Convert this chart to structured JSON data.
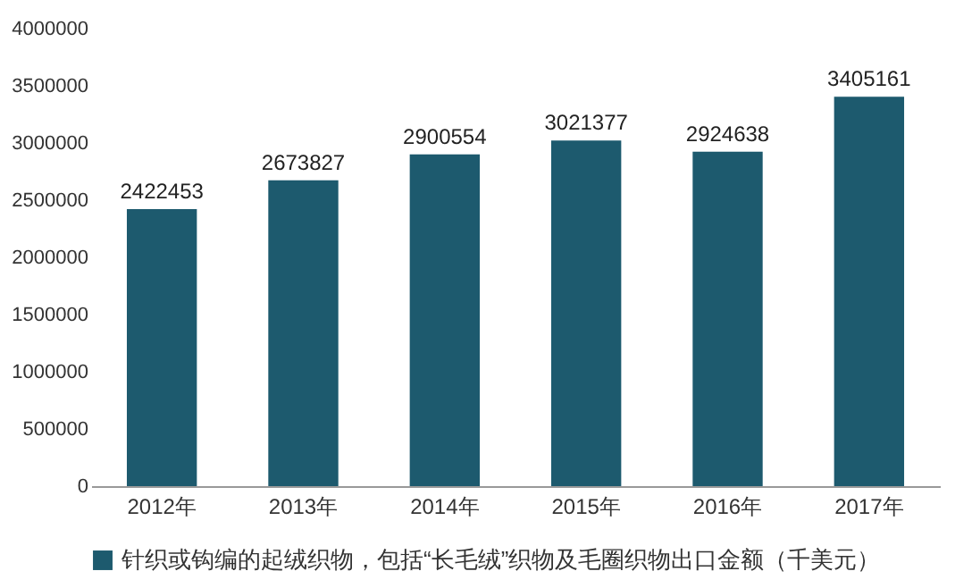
{
  "chart_data": {
    "type": "bar",
    "categories": [
      "2012年",
      "2013年",
      "2014年",
      "2015年",
      "2016年",
      "2017年"
    ],
    "series": [
      {
        "name": "针织或钩编的起绒织物，包括“长毛绒”织物及毛圈织物出口金额（千美元）",
        "color": "#1d5a6e",
        "values": [
          2422453,
          2673827,
          2900554,
          3021377,
          2924638,
          3405161
        ]
      }
    ],
    "ylim": [
      0,
      4000000
    ],
    "yticks": [
      0,
      500000,
      1000000,
      1500000,
      2000000,
      2500000,
      3000000,
      3500000,
      4000000
    ],
    "data_labels": true,
    "grid": false,
    "legend": "bottom"
  }
}
